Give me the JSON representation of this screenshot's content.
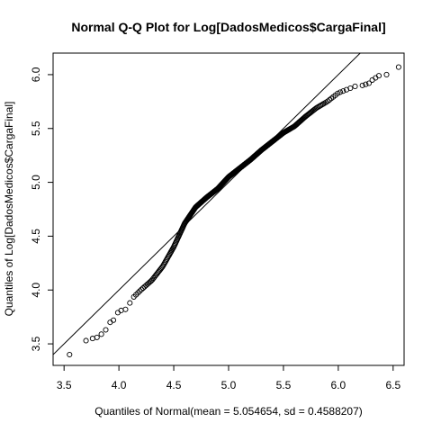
{
  "chart_data": {
    "type": "scatter",
    "title": "Normal Q-Q Plot for Log[DadosMedicos$CargaFinal]",
    "xlabel": "Quantiles of Normal(mean = 5.054654, sd = 0.4588207)",
    "ylabel": "Quantiles of Log[DadosMedicos$CargaFinal]",
    "xlim": [
      3.4,
      6.6
    ],
    "ylim": [
      3.3,
      6.2
    ],
    "xticks": [
      3.5,
      4.0,
      4.5,
      5.0,
      5.5,
      6.0,
      6.5
    ],
    "xtick_labels": [
      "3.5",
      "4.0",
      "4.5",
      "5.0",
      "5.5",
      "6.0",
      "6.5"
    ],
    "yticks": [
      3.5,
      4.0,
      4.5,
      5.0,
      5.5,
      6.0
    ],
    "ytick_labels": [
      "3.5",
      "4.0",
      "4.5",
      "5.0",
      "5.5",
      "6.0"
    ],
    "reference_line": {
      "slope": 1,
      "intercept": 0
    },
    "grid": false,
    "marker": "open-circle",
    "quantile_curve": [
      [
        3.55,
        3.4
      ],
      [
        3.7,
        3.53
      ],
      [
        3.78,
        3.56
      ],
      [
        3.85,
        3.62
      ],
      [
        3.95,
        3.74
      ],
      [
        4.0,
        3.8
      ],
      [
        4.1,
        3.9
      ],
      [
        4.2,
        4.0
      ],
      [
        4.3,
        4.09
      ],
      [
        4.4,
        4.22
      ],
      [
        4.5,
        4.4
      ],
      [
        4.6,
        4.62
      ],
      [
        4.7,
        4.77
      ],
      [
        4.8,
        4.86
      ],
      [
        4.9,
        4.94
      ],
      [
        5.0,
        5.05
      ],
      [
        5.1,
        5.13
      ],
      [
        5.2,
        5.21
      ],
      [
        5.3,
        5.3
      ],
      [
        5.4,
        5.38
      ],
      [
        5.5,
        5.46
      ],
      [
        5.6,
        5.52
      ],
      [
        5.7,
        5.61
      ],
      [
        5.8,
        5.69
      ],
      [
        5.9,
        5.75
      ],
      [
        6.0,
        5.83
      ],
      [
        6.1,
        5.87
      ],
      [
        6.2,
        5.91
      ],
      [
        6.3,
        5.95
      ],
      [
        6.4,
        5.99
      ],
      [
        6.55,
        6.07
      ]
    ],
    "points_count": 420,
    "extra_points": [
      [
        3.55,
        3.4
      ],
      [
        3.7,
        3.53
      ],
      [
        3.76,
        3.55
      ],
      [
        3.8,
        3.56
      ],
      [
        3.84,
        3.59
      ],
      [
        3.88,
        3.63
      ],
      [
        3.92,
        3.7
      ],
      [
        3.95,
        3.72
      ],
      [
        3.99,
        3.79
      ],
      [
        4.02,
        3.81
      ],
      [
        4.06,
        3.82
      ],
      [
        4.1,
        3.88
      ],
      [
        6.22,
        5.9
      ],
      [
        6.25,
        5.91
      ],
      [
        6.28,
        5.92
      ],
      [
        6.31,
        5.95
      ],
      [
        6.34,
        5.97
      ],
      [
        6.37,
        5.99
      ],
      [
        6.44,
        6.0
      ],
      [
        6.55,
        6.07
      ]
    ]
  }
}
